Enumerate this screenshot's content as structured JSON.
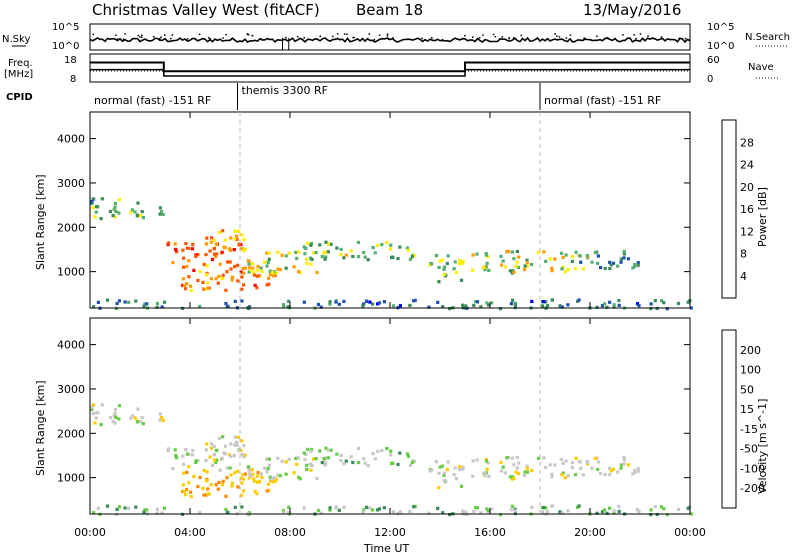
{
  "chart_data": {
    "type": "heatmap",
    "header": {
      "station": "Christmas Valley West (fitACF)",
      "beam": "Beam 18",
      "date": "13/May/2016"
    },
    "x_axis": {
      "label": "Time UT",
      "ticks": [
        "00:00",
        "04:00",
        "08:00",
        "12:00",
        "16:00",
        "20:00",
        "00:00"
      ],
      "range_hours": [
        0,
        24
      ]
    },
    "y_axis": {
      "label": "Slant Range [km]",
      "ticks": [
        1000,
        2000,
        3000,
        4000
      ],
      "range_km": [
        180,
        4600
      ]
    },
    "nsky_panel": {
      "left_label": "N.Sky",
      "left_ticks": [
        "10^5",
        "10^0"
      ],
      "right_label": "N.Search",
      "right_ticks": [
        "10^5",
        "10^0"
      ]
    },
    "freq_panel": {
      "left_label_line1": "Freq.",
      "left_label_line2": "[MHz]",
      "left_ticks": [
        18,
        8
      ],
      "right_label": "Nave",
      "right_ticks": [
        60,
        0
      ],
      "freq_steps": [
        [
          0,
          15.5
        ],
        [
          2.95,
          15.5
        ],
        [
          2.95,
          11.5
        ],
        [
          15.0,
          11.5
        ],
        [
          15.0,
          15.5
        ],
        [
          24,
          15.5
        ]
      ],
      "nave_steps": [
        [
          0,
          26
        ],
        [
          2.95,
          26
        ],
        [
          2.95,
          10
        ],
        [
          15.0,
          10
        ],
        [
          15.0,
          26
        ],
        [
          24,
          26
        ]
      ]
    },
    "cpid": {
      "label": "CPID",
      "segments": [
        {
          "start": 0,
          "end": 5.9,
          "text": "normal (fast) -151 RF"
        },
        {
          "start": 5.9,
          "end": 18.0,
          "text": "themis 3300 RF"
        },
        {
          "start": 18.0,
          "end": 24,
          "text": "normal (fast) -151 RF"
        }
      ]
    },
    "power_panel": {
      "colorbar_label": "Power [dB]",
      "colorbar_ticks": [
        4,
        8,
        12,
        16,
        20,
        24,
        28
      ],
      "value_range": [
        0,
        30
      ],
      "colors": [
        "#0000ff",
        "#2050b0",
        "#3a8a5a",
        "#55b070",
        "#ffee00",
        "#ff9a00",
        "#ff5500",
        "#ff0000"
      ]
    },
    "velocity_panel": {
      "colorbar_label": "Velocity [m s^-1]",
      "colorbar_ticks": [
        "200",
        "100",
        "50",
        "15",
        "-15",
        "-50",
        "-100",
        "-200"
      ],
      "colors": [
        "#1030a0",
        "#2060d0",
        "#3a8a5a",
        "#66cc44",
        "#c8c8c8",
        "#ffcc00",
        "#ff8800",
        "#ff3300",
        "#ff0000"
      ]
    },
    "echo_regions": [
      {
        "t0": 0.0,
        "t1": 2.0,
        "r0": 2200,
        "r1": 2700,
        "p": 12,
        "v": 0
      },
      {
        "t0": 1.8,
        "t1": 3.0,
        "r0": 2200,
        "r1": 2500,
        "p": 11,
        "v": 0
      },
      {
        "t0": 3.0,
        "t1": 6.0,
        "r0": 1200,
        "r1": 1700,
        "p": 24,
        "v": 0
      },
      {
        "t0": 4.5,
        "t1": 6.3,
        "r0": 1500,
        "r1": 2000,
        "p": 20,
        "v": 0
      },
      {
        "t0": 3.5,
        "t1": 7.5,
        "r0": 600,
        "r1": 1200,
        "p": 22,
        "v": -40
      },
      {
        "t0": 6.0,
        "t1": 9.5,
        "r0": 1000,
        "r1": 1500,
        "p": 16,
        "v": 0
      },
      {
        "t0": 8.5,
        "t1": 13.0,
        "r0": 1300,
        "r1": 1700,
        "p": 14,
        "v": 10
      },
      {
        "t0": 13.5,
        "t1": 15.0,
        "r0": 800,
        "r1": 1400,
        "p": 13,
        "v": 0
      },
      {
        "t0": 15.2,
        "t1": 20.0,
        "r0": 1000,
        "r1": 1500,
        "p": 16,
        "v": 0
      },
      {
        "t0": 19.5,
        "t1": 22.0,
        "r0": 1100,
        "r1": 1500,
        "p": 10,
        "v": 0
      },
      {
        "t0": 0.0,
        "t1": 24.0,
        "r0": 200,
        "r1": 400,
        "p": 8,
        "v": 20
      }
    ]
  }
}
